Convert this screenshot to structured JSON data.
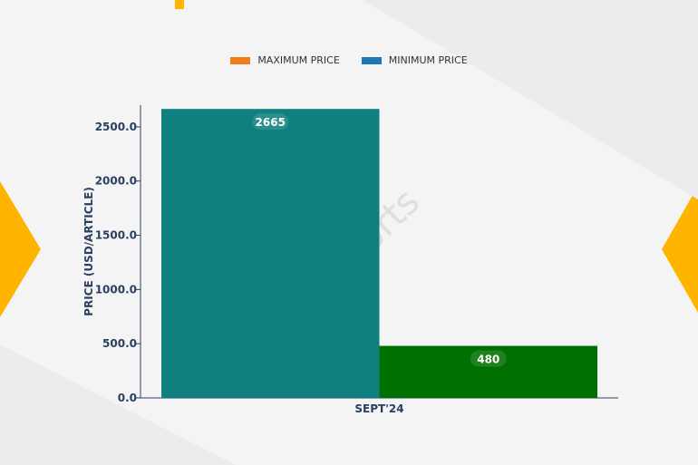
{
  "colors": {
    "maximum": "#f07c1a",
    "minimum": "#1f77b4",
    "bar_max": "#107f7f",
    "bar_min": "#007000",
    "accent": "#ffb400"
  },
  "legend": {
    "items": [
      {
        "label": "MAXIMUM PRICE",
        "color": "#f07c1a"
      },
      {
        "label": "MINIMUM PRICE",
        "color": "#1f77b4"
      }
    ]
  },
  "watermark": "D&J Reports",
  "chart_data": {
    "type": "bar",
    "categories": [
      "SEPT'24"
    ],
    "series": [
      {
        "name": "MAXIMUM PRICE",
        "values": [
          2665
        ]
      },
      {
        "name": "MINIMUM PRICE",
        "values": [
          480
        ]
      }
    ],
    "data_labels": [
      "2665",
      "480"
    ],
    "ylabel": "PRICE (USD/ARTICLE)",
    "xlabel": "",
    "ylim": [
      0,
      2700
    ],
    "yticks": [
      "0.0",
      "500.0",
      "1000.0",
      "1500.0",
      "2000.0",
      "2500.0"
    ],
    "grid": false,
    "legend_position": "top-center"
  }
}
